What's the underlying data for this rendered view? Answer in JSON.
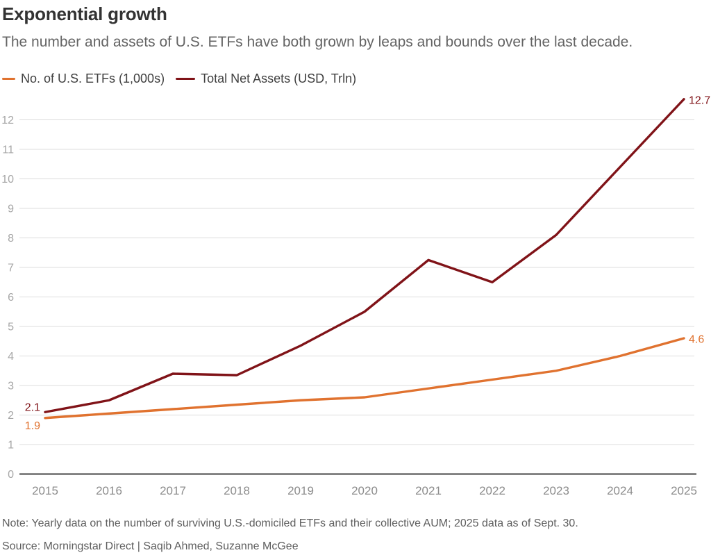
{
  "header": {
    "title": "Exponential growth",
    "subtitle": "The number and assets of U.S. ETFs have both grown by leaps and bounds over the last decade."
  },
  "legend": {
    "items": [
      {
        "label": "No. of U.S. ETFs (1,000s)",
        "color": "#e0722f"
      },
      {
        "label": "Total Net Assets (USD, Trln)",
        "color": "#801318"
      }
    ]
  },
  "chart_data": {
    "type": "line",
    "title": "Exponential growth",
    "x": [
      2015,
      2016,
      2017,
      2018,
      2019,
      2020,
      2021,
      2022,
      2023,
      2024,
      2025
    ],
    "series": [
      {
        "name": "No. of U.S. ETFs (1,000s)",
        "color": "#e0722f",
        "values": [
          1.9,
          2.05,
          2.2,
          2.35,
          2.5,
          2.6,
          2.9,
          3.2,
          3.5,
          4.0,
          4.6
        ],
        "start_label": "1.9",
        "end_label": "4.6",
        "label_side": "below"
      },
      {
        "name": "Total Net Assets (USD, Trln)",
        "color": "#801318",
        "values": [
          2.1,
          2.5,
          3.4,
          3.35,
          4.35,
          5.5,
          7.25,
          6.5,
          8.1,
          10.4,
          12.7
        ],
        "start_label": "2.1",
        "end_label": "12.7",
        "label_side": "above"
      }
    ],
    "ylim": [
      0,
      12.7
    ],
    "y_ticks": [
      0,
      1,
      2,
      3,
      4,
      5,
      6,
      7,
      8,
      9,
      10,
      11,
      12
    ],
    "grid": "horizontal",
    "legend_position": "top"
  },
  "footer": {
    "note": "Note: Yearly data on the number of surviving U.S.-domiciled ETFs and their collective AUM; 2025 data as of Sept. 30.",
    "source": "Source: Morningstar Direct  | Saqib Ahmed, Suzanne McGee"
  }
}
